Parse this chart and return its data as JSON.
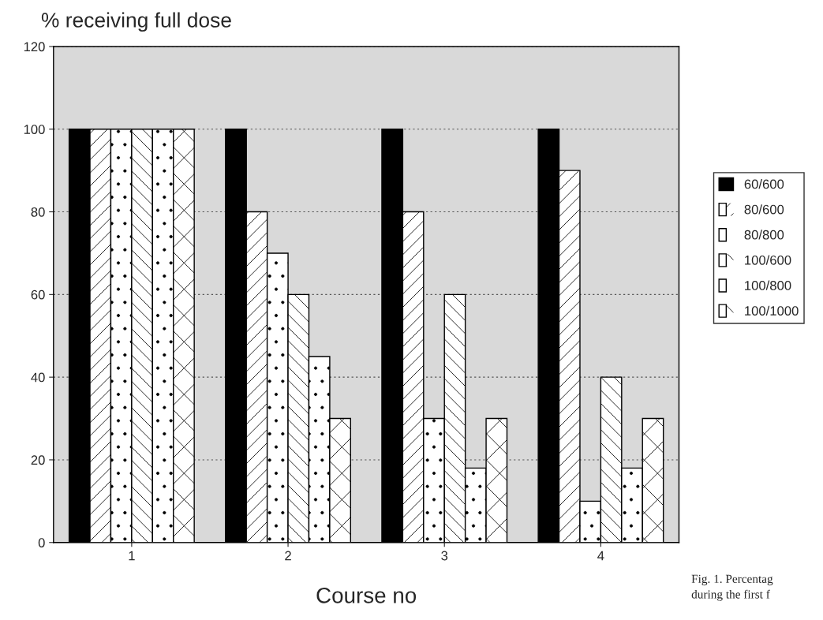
{
  "chart_data": {
    "type": "bar",
    "ylabel": "% receiving full dose",
    "xlabel": "Course no",
    "categories": [
      "1",
      "2",
      "3",
      "4"
    ],
    "series": [
      {
        "name": "60/600",
        "color": "#000000",
        "values": [
          100,
          100,
          100,
          100
        ]
      },
      {
        "name": "80/600",
        "color": "#ffffff",
        "values": [
          100,
          80,
          80,
          90
        ]
      },
      {
        "name": "80/800",
        "color": "#ffffff",
        "values": [
          100,
          70,
          30,
          10
        ]
      },
      {
        "name": "100/600",
        "color": "#ffffff",
        "values": [
          100,
          60,
          60,
          40
        ]
      },
      {
        "name": "100/800",
        "color": "#ffffff",
        "values": [
          100,
          45,
          18,
          18
        ]
      },
      {
        "name": "100/1000",
        "color": "#ffffff",
        "values": [
          100,
          30,
          30,
          30
        ]
      }
    ],
    "ylim": [
      0,
      120
    ],
    "yticks": [
      0,
      20,
      40,
      60,
      80,
      100,
      120
    ],
    "grid": "y",
    "legend": "right",
    "annotations": [
      "Fig. 1. Percentag",
      "during the first f"
    ]
  }
}
